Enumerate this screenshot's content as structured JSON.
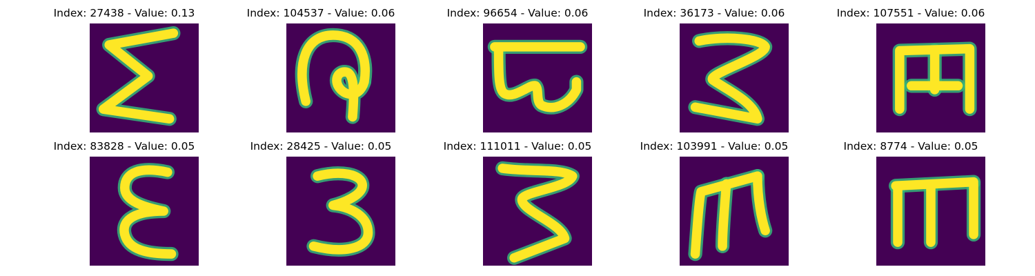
{
  "panels": [
    {
      "title": "Index: 27438 - Value: 0.13",
      "glyph": "sigma"
    },
    {
      "title": "Index: 104537 - Value: 0.06",
      "glyph": "loop"
    },
    {
      "title": "Index: 96654 - Value: 0.06",
      "glyph": "bar-curl"
    },
    {
      "title": "Index: 36173 - Value: 0.06",
      "glyph": "z-s"
    },
    {
      "title": "Index: 107551 - Value: 0.06",
      "glyph": "m-block"
    },
    {
      "title": "Index: 83828 - Value: 0.05",
      "glyph": "epsilon"
    },
    {
      "title": "Index: 28425 - Value: 0.05",
      "glyph": "three"
    },
    {
      "title": "Index: 111011 - Value: 0.05",
      "glyph": "z-s2"
    },
    {
      "title": "Index: 103991 - Value: 0.05",
      "glyph": "m-lean"
    },
    {
      "title": "Index: 8774 - Value: 0.05",
      "glyph": "m-legs"
    }
  ],
  "colors": {
    "background": "#440154",
    "stroke": "#fde725",
    "edge": "#35b779"
  }
}
